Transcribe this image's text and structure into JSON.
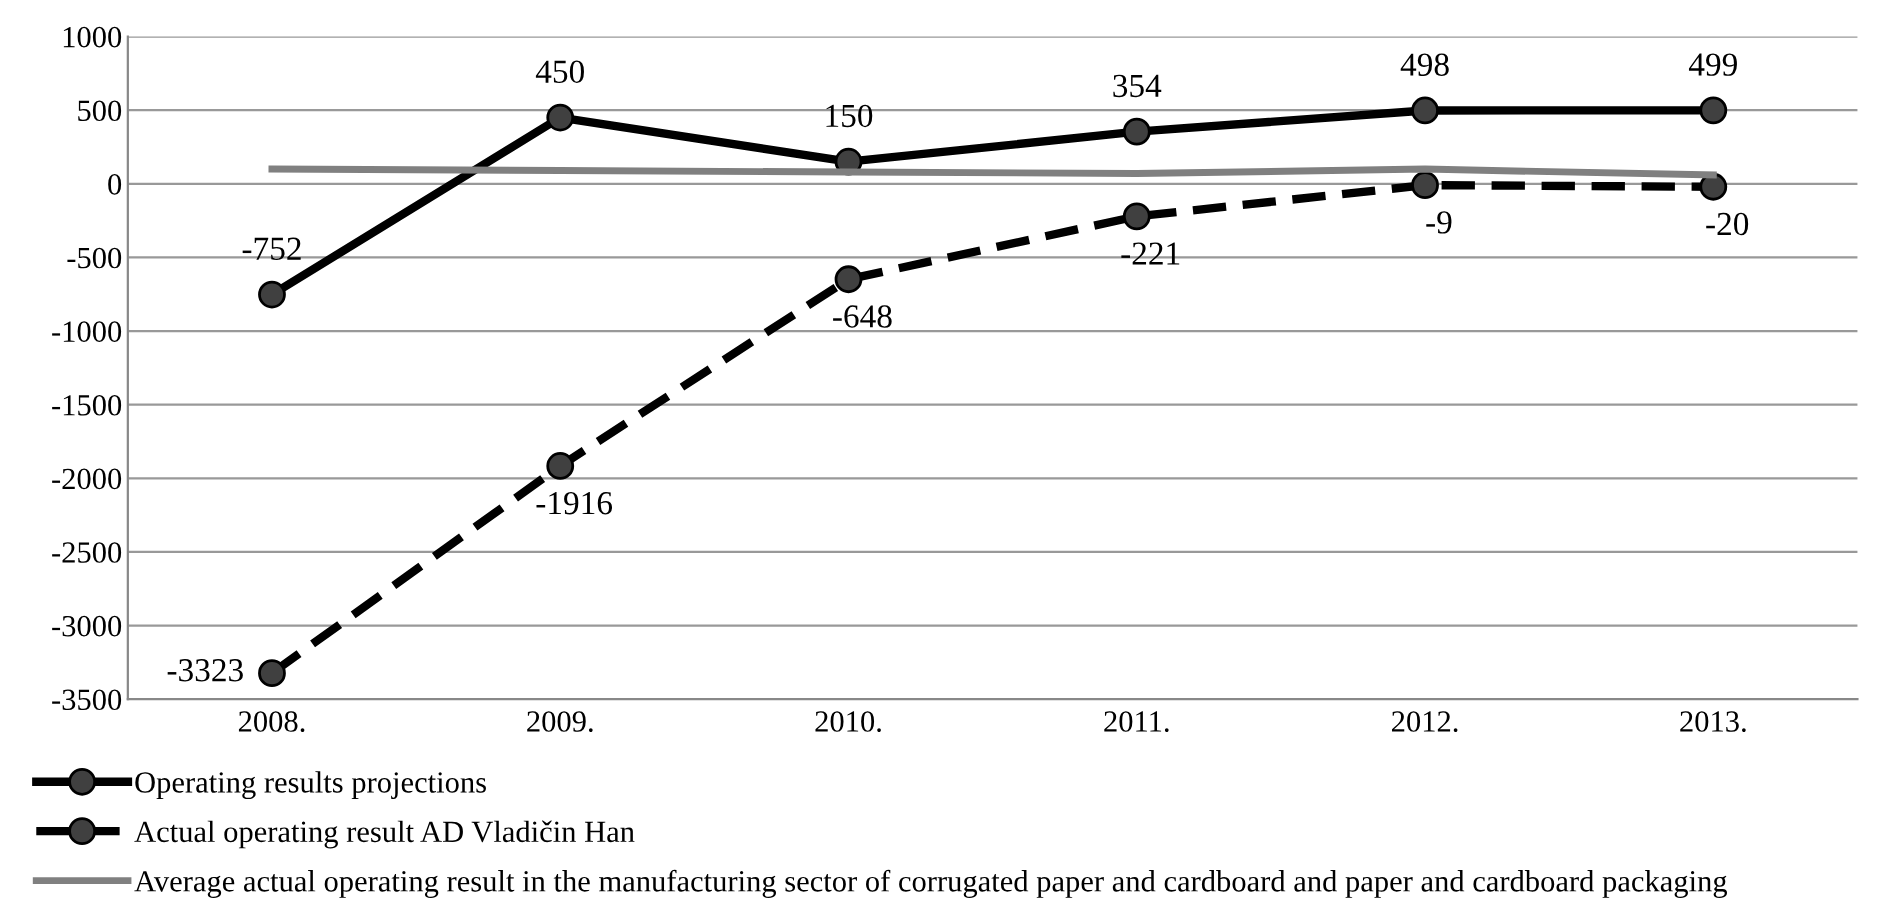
{
  "chart_data": {
    "type": "line",
    "categories": [
      "2008.",
      "2009.",
      "2010.",
      "2011.",
      "2012.",
      "2013."
    ],
    "series": [
      {
        "name": "Operating results projections",
        "color": "#000000",
        "values": [
          -752,
          450,
          150,
          354,
          498,
          499
        ],
        "value_labels": [
          "-752",
          "450",
          "150",
          "354",
          "498",
          "499"
        ],
        "marker": "circle",
        "line_style": "solid"
      },
      {
        "name": "Actual operating result AD Vladičin Han",
        "color": "#000000",
        "values": [
          -3323,
          -1916,
          -648,
          -221,
          -9,
          -20
        ],
        "value_labels": [
          "-3323",
          "-1916",
          "-648",
          "-221",
          "-9",
          "-20"
        ],
        "marker": "circle",
        "line_style": "dashed"
      },
      {
        "name": "Average actual operating result in the manufacturing sector of corrugated paper and cardboard and paper and cardboard packaging",
        "color": "#808080",
        "values": [
          100,
          90,
          80,
          70,
          100,
          60
        ],
        "marker": "none",
        "line_style": "solid"
      }
    ],
    "ylim": [
      -3500,
      1000
    ],
    "yticks": [
      -3500,
      -3000,
      -2500,
      -2000,
      -1500,
      -1000,
      -500,
      0,
      500,
      1000
    ],
    "grid": "y",
    "legend": "bottom"
  }
}
